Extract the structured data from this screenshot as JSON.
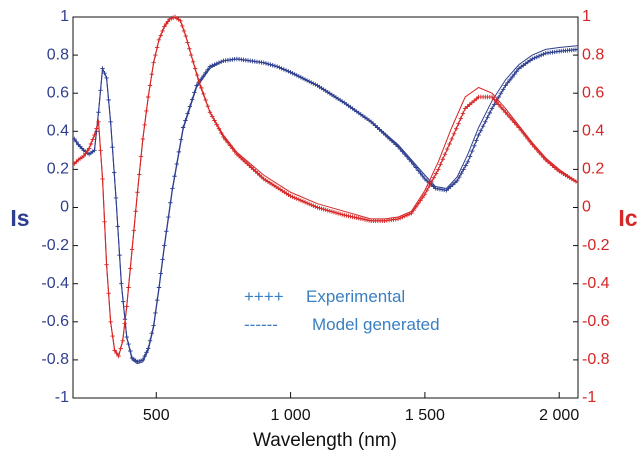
{
  "chart_data": {
    "type": "line",
    "xlabel": "Wavelength (nm)",
    "ylabel_left": "Is",
    "ylabel_right": "Ic",
    "xlim": [
      190,
      2070
    ],
    "ylim_left": [
      -1,
      1
    ],
    "ylim_right": [
      -1,
      1
    ],
    "x_ticks": [
      500,
      1000,
      1500,
      2000
    ],
    "x_tick_labels": [
      "500",
      "1 000",
      "1 500",
      "2 000"
    ],
    "y_ticks": [
      -1,
      -0.8,
      -0.6,
      -0.4,
      -0.2,
      0,
      0.2,
      0.4,
      0.6,
      0.8,
      1
    ],
    "y_tick_labels_left": [
      "-1",
      "-0.8",
      "-0.6",
      "-0.4",
      "-0.2",
      "0",
      "0.2",
      "0.4",
      "0.6",
      "0.8",
      "1"
    ],
    "y_tick_labels_right": [
      "-1",
      "-0.8",
      "-0.6",
      "-0.4",
      "-0.2",
      "0",
      "0.2",
      "0.4",
      "0.6",
      "0.8",
      "1"
    ],
    "grid": false,
    "legend": {
      "placement": "center",
      "entries": [
        {
          "marker": "++++",
          "label": "Experimental"
        },
        {
          "marker": "------",
          "label": "Model generated"
        }
      ]
    },
    "colors": {
      "is": "#2f3f8f",
      "ic": "#d62626",
      "legend": "#3a7fc1",
      "axes": "#111111"
    },
    "series": [
      {
        "axis": "left",
        "color": "#2f3f8f",
        "x": [
          195,
          210,
          230,
          250,
          270,
          285,
          300,
          315,
          330,
          350,
          370,
          390,
          410,
          430,
          450,
          470,
          490,
          510,
          530,
          560,
          600,
          650,
          700,
          750,
          800,
          850,
          900,
          950,
          1000,
          1100,
          1200,
          1300,
          1400,
          1450,
          1500,
          1540,
          1580,
          1620,
          1660,
          1700,
          1750,
          1800,
          1850,
          1900,
          1950,
          2000,
          2070
        ],
        "experimental": [
          0.36,
          0.33,
          0.3,
          0.28,
          0.3,
          0.5,
          0.73,
          0.68,
          0.45,
          0.05,
          -0.4,
          -0.68,
          -0.79,
          -0.81,
          -0.8,
          -0.74,
          -0.62,
          -0.42,
          -0.2,
          0.1,
          0.42,
          0.64,
          0.74,
          0.77,
          0.78,
          0.77,
          0.76,
          0.74,
          0.71,
          0.64,
          0.55,
          0.45,
          0.32,
          0.24,
          0.15,
          0.1,
          0.09,
          0.14,
          0.24,
          0.38,
          0.52,
          0.64,
          0.73,
          0.78,
          0.81,
          0.82,
          0.83
        ],
        "model": [
          0.36,
          0.33,
          0.3,
          0.28,
          0.3,
          0.5,
          0.73,
          0.68,
          0.45,
          0.05,
          -0.4,
          -0.68,
          -0.8,
          -0.82,
          -0.81,
          -0.75,
          -0.63,
          -0.43,
          -0.21,
          0.09,
          0.41,
          0.63,
          0.73,
          0.77,
          0.78,
          0.77,
          0.76,
          0.74,
          0.71,
          0.64,
          0.55,
          0.45,
          0.33,
          0.25,
          0.17,
          0.11,
          0.1,
          0.16,
          0.28,
          0.42,
          0.56,
          0.67,
          0.75,
          0.8,
          0.83,
          0.84,
          0.85
        ]
      },
      {
        "axis": "right",
        "color": "#d62626",
        "x": [
          195,
          210,
          230,
          250,
          270,
          285,
          300,
          315,
          330,
          345,
          360,
          375,
          390,
          410,
          430,
          450,
          470,
          490,
          510,
          530,
          550,
          570,
          590,
          610,
          630,
          660,
          700,
          750,
          800,
          900,
          1000,
          1100,
          1200,
          1300,
          1350,
          1400,
          1450,
          1500,
          1550,
          1600,
          1650,
          1700,
          1750,
          1800,
          1850,
          1900,
          1950,
          2000,
          2070
        ],
        "experimental": [
          0.23,
          0.25,
          0.27,
          0.31,
          0.38,
          0.45,
          0.15,
          -0.3,
          -0.6,
          -0.75,
          -0.78,
          -0.7,
          -0.52,
          -0.22,
          0.08,
          0.36,
          0.58,
          0.76,
          0.88,
          0.95,
          0.99,
          1.0,
          0.98,
          0.9,
          0.8,
          0.66,
          0.5,
          0.37,
          0.28,
          0.15,
          0.06,
          0.0,
          -0.04,
          -0.07,
          -0.07,
          -0.06,
          -0.03,
          0.07,
          0.2,
          0.36,
          0.52,
          0.58,
          0.58,
          0.5,
          0.42,
          0.33,
          0.25,
          0.19,
          0.13
        ],
        "model": [
          0.23,
          0.25,
          0.27,
          0.31,
          0.38,
          0.45,
          0.15,
          -0.3,
          -0.6,
          -0.75,
          -0.78,
          -0.7,
          -0.52,
          -0.22,
          0.08,
          0.36,
          0.58,
          0.76,
          0.88,
          0.95,
          0.99,
          1.0,
          0.98,
          0.9,
          0.8,
          0.65,
          0.5,
          0.38,
          0.29,
          0.17,
          0.08,
          0.02,
          -0.02,
          -0.06,
          -0.06,
          -0.05,
          -0.02,
          0.09,
          0.24,
          0.42,
          0.58,
          0.63,
          0.6,
          0.52,
          0.43,
          0.34,
          0.26,
          0.2,
          0.13
        ]
      }
    ]
  }
}
